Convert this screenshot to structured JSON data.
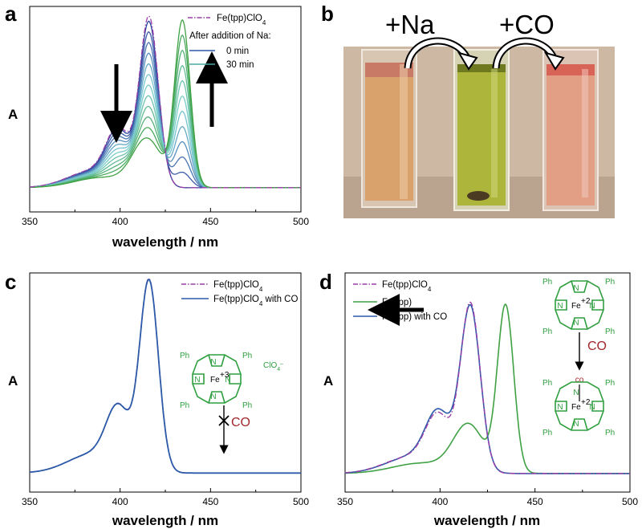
{
  "panels": {
    "a": {
      "label": "a",
      "xlabel": "wavelength / nm",
      "ylabel": "A",
      "legend": {
        "ref": "Fe(tpp)ClO",
        "ref_sub": "4",
        "title": "After addition of Na:",
        "start": "0 min",
        "end": "30 min"
      }
    },
    "b": {
      "label": "b",
      "add_na": "+Na",
      "add_co": "+CO"
    },
    "c": {
      "label": "c",
      "xlabel": "wavelength / nm",
      "ylabel": "A",
      "legend": [
        {
          "text": "Fe(tpp)ClO",
          "sub": "4",
          "tail": ""
        },
        {
          "text": "Fe(tpp)ClO",
          "sub": "4",
          "tail": " with CO"
        }
      ],
      "mol": {
        "ph": "Ph",
        "metal": "Fe",
        "ox": "+3",
        "n": "N",
        "anion": "ClO",
        "anion_sub": "4",
        "anion_sup": "–",
        "co": "CO"
      }
    },
    "d": {
      "label": "d",
      "xlabel": "wavelength / nm",
      "ylabel": "A",
      "legend": [
        {
          "text": "Fe(tpp)ClO",
          "sub": "4",
          "tail": ""
        },
        {
          "text": "Fe(tpp)",
          "sub": "",
          "tail": ""
        },
        {
          "text": "Fe(tpp) with CO",
          "sub": "",
          "tail": ""
        }
      ],
      "mol": {
        "ph": "Ph",
        "metal": "Fe",
        "ox": "+2",
        "n": "N",
        "co": "CO",
        "co_ligand": "co"
      }
    }
  },
  "colors": {
    "dashdot": "#9b3fa8",
    "blue": "#2c5aa8",
    "green": "#3fa144",
    "arrow": "#000000",
    "mol": "#2f9e3f",
    "co": "#a0282d"
  },
  "chart_data": [
    {
      "panel": "a",
      "type": "line",
      "xlim": [
        350,
        500
      ],
      "x_ticks": [
        350,
        400,
        450,
        500
      ],
      "xlabel": "wavelength / nm",
      "ylabel": "A",
      "series": [
        {
          "name": "Fe(tpp)ClO4",
          "style": "dash-dot",
          "peak_nm": 416,
          "peak_rel": 1.0
        },
        {
          "name": "0 min",
          "style": "solid",
          "peak_nm": 416,
          "peak_rel": 0.97
        },
        {
          "name": "30 min",
          "style": "solid",
          "peak_nm": 434,
          "peak_rel": 0.98
        }
      ],
      "isosbestic_nm": 425,
      "time_steps": 12
    },
    {
      "panel": "c",
      "type": "line",
      "xlim": [
        350,
        500
      ],
      "x_ticks": [
        350,
        400,
        450,
        500
      ],
      "xlabel": "wavelength / nm",
      "ylabel": "A",
      "series": [
        {
          "name": "Fe(tpp)ClO4",
          "style": "dash-dot",
          "peak_nm": 416,
          "peak_rel": 1.0
        },
        {
          "name": "Fe(tpp)ClO4 with CO",
          "style": "solid",
          "peak_nm": 416,
          "peak_rel": 1.0
        }
      ]
    },
    {
      "panel": "d",
      "type": "line",
      "xlim": [
        350,
        500
      ],
      "x_ticks": [
        350,
        400,
        450,
        500
      ],
      "xlabel": "wavelength / nm",
      "ylabel": "A",
      "series": [
        {
          "name": "Fe(tpp)ClO4",
          "style": "dash-dot",
          "peak_nm": 416,
          "peak_rel": 0.88
        },
        {
          "name": "Fe(tpp)",
          "style": "solid",
          "peak_nm": 434,
          "peak_rel": 0.89
        },
        {
          "name": "Fe(tpp) with CO",
          "style": "solid",
          "peak_nm": 416,
          "peak_rel": 0.88
        }
      ]
    }
  ]
}
